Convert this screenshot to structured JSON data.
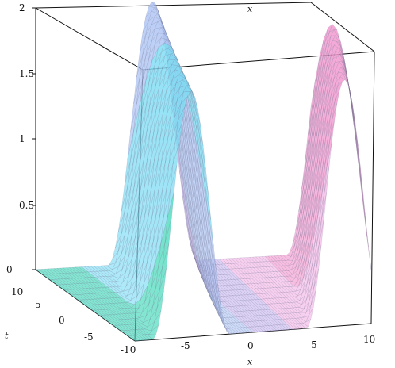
{
  "chart_data": {
    "type": "surface3d",
    "title": "",
    "axes": {
      "x": {
        "label": "x",
        "range": [
          -10,
          10
        ],
        "ticks": [
          "-10",
          "-5",
          "0",
          "5",
          "10"
        ]
      },
      "t": {
        "label": "t",
        "range": [
          -5,
          10
        ],
        "ticks": [
          "10",
          "5",
          "0",
          "-5"
        ]
      },
      "z": {
        "label": "",
        "range": [
          0,
          2
        ],
        "ticks": [
          "0",
          "0.5",
          "1",
          "1.5",
          "2"
        ]
      }
    },
    "surface": {
      "description_free": true,
      "shape": "periodic ridges along x",
      "peak_value": 2,
      "trough_value": 0,
      "ridge_count": 3,
      "colors": [
        "#3fd8b8",
        "#7fdcf4",
        "#b0c6f4",
        "#c9b8f0",
        "#f3b6e6",
        "#f29ad0"
      ],
      "grid": true
    }
  }
}
